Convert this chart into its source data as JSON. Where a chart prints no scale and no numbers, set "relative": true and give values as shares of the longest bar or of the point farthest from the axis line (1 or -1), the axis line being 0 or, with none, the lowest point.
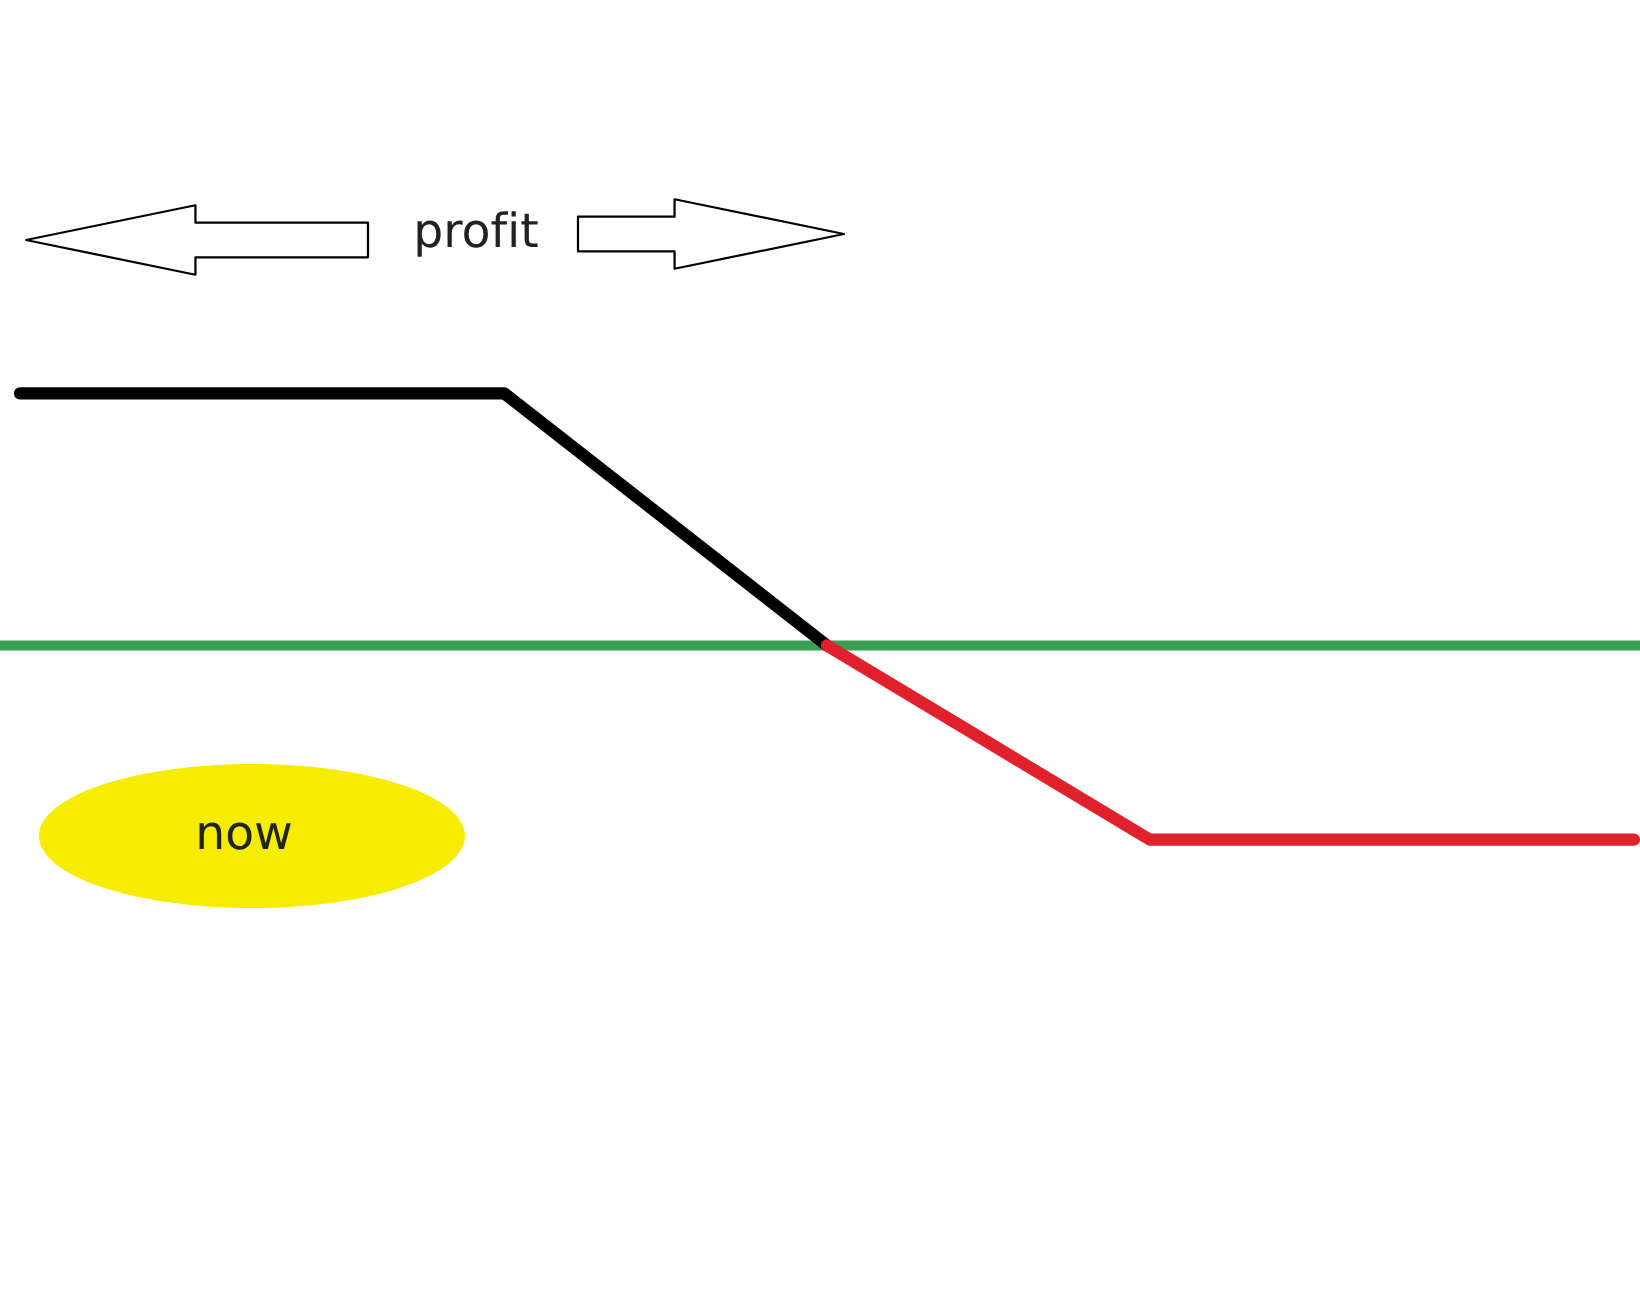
{
  "chart_data": {
    "type": "line",
    "relative": true,
    "categories": [
      null,
      null,
      null,
      null,
      null,
      null,
      null,
      null,
      null,
      null,
      null
    ],
    "series": [
      {
        "color": "#000000",
        "values": [
          1,
          1,
          1,
          1,
          0.5,
          0,
          null,
          null,
          null,
          null,
          null
        ]
      },
      {
        "color": "#e0202a",
        "values": [
          null,
          null,
          null,
          null,
          null,
          0,
          -0.385,
          -0.77,
          -0.77,
          -0.77,
          -0.77
        ]
      }
    ],
    "ref_lines": [
      {
        "axis": "y",
        "value": 0,
        "color": "#3a9f52"
      }
    ],
    "annotations": [
      "profit",
      "now"
    ]
  }
}
